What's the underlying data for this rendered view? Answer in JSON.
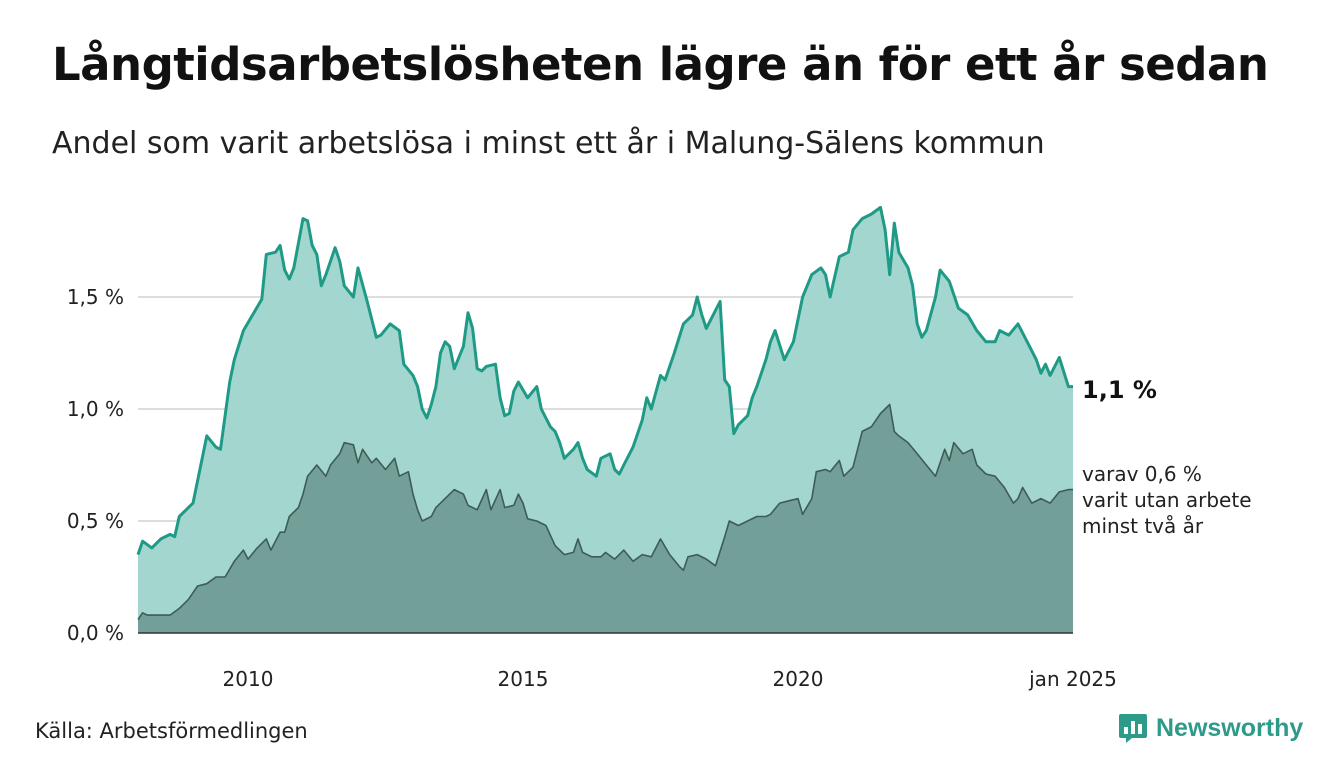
{
  "title": "Långtidsarbetslösheten lägre än för ett år sedan",
  "subtitle": "Andel som varit arbetslösa i minst ett år i Malung-Sälens kommun",
  "source": "Källa: Arbetsförmedlingen",
  "brand": {
    "name": "Newsworthy",
    "icon": "bar-chart-speech-bubble-icon"
  },
  "colors": {
    "series1_line": "#1f9a87",
    "series1_fill": "#a3d6ce",
    "series2_line": "#3e5c57",
    "series2_fill": "#729f98",
    "grid": "#dddddd",
    "brand": "#2e9a8a"
  },
  "chart_data": {
    "type": "area",
    "x_start": "2008-01",
    "x_end": "2025-01",
    "x_frequency": "monthly",
    "y_ticks": [
      "0,0 %",
      "0,5 %",
      "1,0 %",
      "1,5 %"
    ],
    "y_tick_values": [
      0,
      0.5,
      1.0,
      1.5
    ],
    "x_ticks": [
      "2010",
      "2015",
      "2020",
      "jan 2025"
    ],
    "x_tick_dates": [
      "2010-01",
      "2015-01",
      "2020-01",
      "2025-01"
    ],
    "ylim": [
      0,
      1.9
    ],
    "grid": true,
    "end_labels": {
      "series1": "1,1 %",
      "series2": [
        "varav 0,6 %",
        "varit utan arbete",
        "minst två år"
      ]
    },
    "series": [
      {
        "key": "min_1_year",
        "keypoints": [
          [
            "2008-01",
            0.35
          ],
          [
            "2008-02",
            0.41
          ],
          [
            "2008-04",
            0.38
          ],
          [
            "2008-06",
            0.42
          ],
          [
            "2008-08",
            0.44
          ],
          [
            "2008-09",
            0.43
          ],
          [
            "2008-10",
            0.52
          ],
          [
            "2009-01",
            0.58
          ],
          [
            "2009-03",
            0.78
          ],
          [
            "2009-04",
            0.88
          ],
          [
            "2009-06",
            0.83
          ],
          [
            "2009-07",
            0.82
          ],
          [
            "2009-09",
            1.12
          ],
          [
            "2009-10",
            1.22
          ],
          [
            "2009-12",
            1.35
          ],
          [
            "2010-02",
            1.42
          ],
          [
            "2010-04",
            1.49
          ],
          [
            "2010-05",
            1.69
          ],
          [
            "2010-07",
            1.7
          ],
          [
            "2010-08",
            1.73
          ],
          [
            "2010-09",
            1.62
          ],
          [
            "2010-10",
            1.58
          ],
          [
            "2010-11",
            1.63
          ],
          [
            "2011-01",
            1.85
          ],
          [
            "2011-02",
            1.84
          ],
          [
            "2011-03",
            1.73
          ],
          [
            "2011-04",
            1.69
          ],
          [
            "2011-05",
            1.55
          ],
          [
            "2011-06",
            1.6
          ],
          [
            "2011-08",
            1.72
          ],
          [
            "2011-09",
            1.66
          ],
          [
            "2011-10",
            1.55
          ],
          [
            "2011-12",
            1.5
          ],
          [
            "2012-01",
            1.63
          ],
          [
            "2012-03",
            1.48
          ],
          [
            "2012-05",
            1.32
          ],
          [
            "2012-06",
            1.33
          ],
          [
            "2012-08",
            1.38
          ],
          [
            "2012-10",
            1.35
          ],
          [
            "2012-11",
            1.2
          ],
          [
            "2013-01",
            1.15
          ],
          [
            "2013-02",
            1.1
          ],
          [
            "2013-03",
            1.0
          ],
          [
            "2013-04",
            0.96
          ],
          [
            "2013-05",
            1.02
          ],
          [
            "2013-06",
            1.1
          ],
          [
            "2013-07",
            1.25
          ],
          [
            "2013-08",
            1.3
          ],
          [
            "2013-09",
            1.28
          ],
          [
            "2013-10",
            1.18
          ],
          [
            "2013-12",
            1.28
          ],
          [
            "2014-01",
            1.43
          ],
          [
            "2014-02",
            1.36
          ],
          [
            "2014-03",
            1.18
          ],
          [
            "2014-04",
            1.17
          ],
          [
            "2014-05",
            1.19
          ],
          [
            "2014-07",
            1.2
          ],
          [
            "2014-08",
            1.05
          ],
          [
            "2014-09",
            0.97
          ],
          [
            "2014-10",
            0.98
          ],
          [
            "2014-11",
            1.08
          ],
          [
            "2014-12",
            1.12
          ],
          [
            "2015-02",
            1.05
          ],
          [
            "2015-04",
            1.1
          ],
          [
            "2015-05",
            1.0
          ],
          [
            "2015-07",
            0.92
          ],
          [
            "2015-08",
            0.9
          ],
          [
            "2015-09",
            0.85
          ],
          [
            "2015-10",
            0.78
          ],
          [
            "2015-12",
            0.82
          ],
          [
            "2016-01",
            0.85
          ],
          [
            "2016-02",
            0.78
          ],
          [
            "2016-03",
            0.73
          ],
          [
            "2016-05",
            0.7
          ],
          [
            "2016-06",
            0.78
          ],
          [
            "2016-08",
            0.8
          ],
          [
            "2016-09",
            0.73
          ],
          [
            "2016-10",
            0.71
          ],
          [
            "2016-11",
            0.75
          ],
          [
            "2017-01",
            0.83
          ],
          [
            "2017-03",
            0.95
          ],
          [
            "2017-04",
            1.05
          ],
          [
            "2017-05",
            1.0
          ],
          [
            "2017-07",
            1.15
          ],
          [
            "2017-08",
            1.13
          ],
          [
            "2017-10",
            1.25
          ],
          [
            "2017-12",
            1.38
          ],
          [
            "2018-02",
            1.42
          ],
          [
            "2018-03",
            1.5
          ],
          [
            "2018-04",
            1.42
          ],
          [
            "2018-05",
            1.36
          ],
          [
            "2018-06",
            1.4
          ],
          [
            "2018-08",
            1.48
          ],
          [
            "2018-09",
            1.13
          ],
          [
            "2018-10",
            1.1
          ],
          [
            "2018-11",
            0.89
          ],
          [
            "2018-12",
            0.93
          ],
          [
            "2019-02",
            0.97
          ],
          [
            "2019-03",
            1.05
          ],
          [
            "2019-04",
            1.1
          ],
          [
            "2019-06",
            1.22
          ],
          [
            "2019-07",
            1.3
          ],
          [
            "2019-08",
            1.35
          ],
          [
            "2019-10",
            1.22
          ],
          [
            "2019-12",
            1.3
          ],
          [
            "2020-02",
            1.5
          ],
          [
            "2020-04",
            1.6
          ],
          [
            "2020-06",
            1.63
          ],
          [
            "2020-07",
            1.6
          ],
          [
            "2020-08",
            1.5
          ],
          [
            "2020-10",
            1.68
          ],
          [
            "2020-12",
            1.7
          ],
          [
            "2021-01",
            1.8
          ],
          [
            "2021-03",
            1.85
          ],
          [
            "2021-05",
            1.87
          ],
          [
            "2021-07",
            1.9
          ],
          [
            "2021-08",
            1.8
          ],
          [
            "2021-09",
            1.6
          ],
          [
            "2021-10",
            1.83
          ],
          [
            "2021-11",
            1.7
          ],
          [
            "2022-01",
            1.63
          ],
          [
            "2022-02",
            1.55
          ],
          [
            "2022-03",
            1.38
          ],
          [
            "2022-04",
            1.32
          ],
          [
            "2022-05",
            1.35
          ],
          [
            "2022-07",
            1.5
          ],
          [
            "2022-08",
            1.62
          ],
          [
            "2022-10",
            1.57
          ],
          [
            "2022-12",
            1.45
          ],
          [
            "2023-02",
            1.42
          ],
          [
            "2023-04",
            1.35
          ],
          [
            "2023-06",
            1.3
          ],
          [
            "2023-08",
            1.3
          ],
          [
            "2023-09",
            1.35
          ],
          [
            "2023-11",
            1.33
          ],
          [
            "2024-01",
            1.38
          ],
          [
            "2024-03",
            1.3
          ],
          [
            "2024-05",
            1.22
          ],
          [
            "2024-06",
            1.16
          ],
          [
            "2024-07",
            1.2
          ],
          [
            "2024-08",
            1.15
          ],
          [
            "2024-10",
            1.23
          ],
          [
            "2024-12",
            1.1
          ],
          [
            "2025-01",
            1.1
          ]
        ]
      },
      {
        "key": "min_2_years",
        "keypoints": [
          [
            "2008-01",
            0.06
          ],
          [
            "2008-02",
            0.09
          ],
          [
            "2008-03",
            0.08
          ],
          [
            "2008-06",
            0.08
          ],
          [
            "2008-08",
            0.08
          ],
          [
            "2008-10",
            0.11
          ],
          [
            "2008-12",
            0.15
          ],
          [
            "2009-02",
            0.21
          ],
          [
            "2009-04",
            0.22
          ],
          [
            "2009-06",
            0.25
          ],
          [
            "2009-08",
            0.25
          ],
          [
            "2009-10",
            0.32
          ],
          [
            "2009-12",
            0.37
          ],
          [
            "2010-01",
            0.33
          ],
          [
            "2010-03",
            0.38
          ],
          [
            "2010-05",
            0.42
          ],
          [
            "2010-06",
            0.37
          ],
          [
            "2010-08",
            0.45
          ],
          [
            "2010-09",
            0.45
          ],
          [
            "2010-10",
            0.52
          ],
          [
            "2010-12",
            0.56
          ],
          [
            "2011-01",
            0.62
          ],
          [
            "2011-02",
            0.7
          ],
          [
            "2011-04",
            0.75
          ],
          [
            "2011-06",
            0.7
          ],
          [
            "2011-07",
            0.75
          ],
          [
            "2011-09",
            0.8
          ],
          [
            "2011-10",
            0.85
          ],
          [
            "2011-12",
            0.84
          ],
          [
            "2012-01",
            0.76
          ],
          [
            "2012-02",
            0.82
          ],
          [
            "2012-04",
            0.76
          ],
          [
            "2012-05",
            0.78
          ],
          [
            "2012-07",
            0.73
          ],
          [
            "2012-09",
            0.78
          ],
          [
            "2012-10",
            0.7
          ],
          [
            "2012-12",
            0.72
          ],
          [
            "2013-01",
            0.62
          ],
          [
            "2013-02",
            0.55
          ],
          [
            "2013-03",
            0.5
          ],
          [
            "2013-05",
            0.52
          ],
          [
            "2013-06",
            0.56
          ],
          [
            "2013-08",
            0.6
          ],
          [
            "2013-10",
            0.64
          ],
          [
            "2013-12",
            0.62
          ],
          [
            "2014-01",
            0.57
          ],
          [
            "2014-03",
            0.55
          ],
          [
            "2014-05",
            0.64
          ],
          [
            "2014-06",
            0.55
          ],
          [
            "2014-08",
            0.64
          ],
          [
            "2014-09",
            0.56
          ],
          [
            "2014-11",
            0.57
          ],
          [
            "2014-12",
            0.62
          ],
          [
            "2015-01",
            0.58
          ],
          [
            "2015-02",
            0.51
          ],
          [
            "2015-04",
            0.5
          ],
          [
            "2015-06",
            0.48
          ],
          [
            "2015-08",
            0.39
          ],
          [
            "2015-10",
            0.35
          ],
          [
            "2015-12",
            0.36
          ],
          [
            "2016-01",
            0.42
          ],
          [
            "2016-02",
            0.36
          ],
          [
            "2016-04",
            0.34
          ],
          [
            "2016-06",
            0.34
          ],
          [
            "2016-07",
            0.36
          ],
          [
            "2016-09",
            0.33
          ],
          [
            "2016-11",
            0.37
          ],
          [
            "2017-01",
            0.32
          ],
          [
            "2017-03",
            0.35
          ],
          [
            "2017-05",
            0.34
          ],
          [
            "2017-07",
            0.42
          ],
          [
            "2017-09",
            0.35
          ],
          [
            "2017-11",
            0.3
          ],
          [
            "2017-12",
            0.28
          ],
          [
            "2018-01",
            0.34
          ],
          [
            "2018-03",
            0.35
          ],
          [
            "2018-05",
            0.33
          ],
          [
            "2018-07",
            0.3
          ],
          [
            "2018-09",
            0.43
          ],
          [
            "2018-10",
            0.5
          ],
          [
            "2018-12",
            0.48
          ],
          [
            "2019-02",
            0.5
          ],
          [
            "2019-04",
            0.52
          ],
          [
            "2019-06",
            0.52
          ],
          [
            "2019-07",
            0.53
          ],
          [
            "2019-09",
            0.58
          ],
          [
            "2019-11",
            0.59
          ],
          [
            "2020-01",
            0.6
          ],
          [
            "2020-02",
            0.53
          ],
          [
            "2020-04",
            0.6
          ],
          [
            "2020-05",
            0.72
          ],
          [
            "2020-07",
            0.73
          ],
          [
            "2020-08",
            0.72
          ],
          [
            "2020-10",
            0.77
          ],
          [
            "2020-11",
            0.7
          ],
          [
            "2021-01",
            0.74
          ],
          [
            "2021-03",
            0.9
          ],
          [
            "2021-05",
            0.92
          ],
          [
            "2021-07",
            0.98
          ],
          [
            "2021-09",
            1.02
          ],
          [
            "2021-10",
            0.9
          ],
          [
            "2021-11",
            0.88
          ],
          [
            "2022-01",
            0.85
          ],
          [
            "2022-03",
            0.8
          ],
          [
            "2022-05",
            0.75
          ],
          [
            "2022-07",
            0.7
          ],
          [
            "2022-08",
            0.76
          ],
          [
            "2022-09",
            0.82
          ],
          [
            "2022-10",
            0.77
          ],
          [
            "2022-11",
            0.85
          ],
          [
            "2023-01",
            0.8
          ],
          [
            "2023-03",
            0.82
          ],
          [
            "2023-04",
            0.75
          ],
          [
            "2023-06",
            0.71
          ],
          [
            "2023-08",
            0.7
          ],
          [
            "2023-10",
            0.65
          ],
          [
            "2023-12",
            0.58
          ],
          [
            "2024-01",
            0.6
          ],
          [
            "2024-02",
            0.65
          ],
          [
            "2024-04",
            0.58
          ],
          [
            "2024-06",
            0.6
          ],
          [
            "2024-08",
            0.58
          ],
          [
            "2024-10",
            0.63
          ],
          [
            "2024-12",
            0.64
          ],
          [
            "2025-01",
            0.64
          ]
        ]
      }
    ]
  }
}
